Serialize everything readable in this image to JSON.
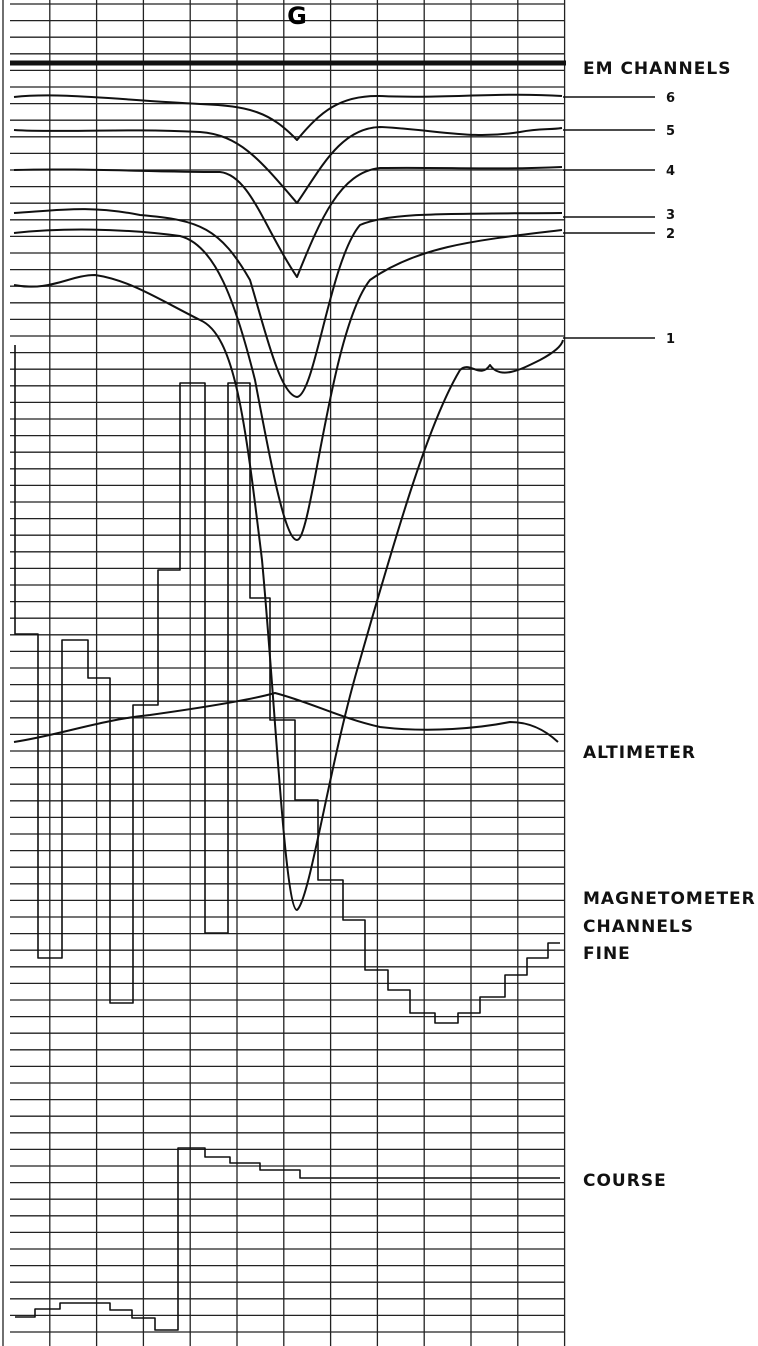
{
  "header": {
    "marker": "G"
  },
  "labels": {
    "em_channels": "EM CHANNELS",
    "channels": [
      "6",
      "5",
      "4",
      "3",
      "2",
      "1"
    ],
    "altimeter": "ALTIMETER",
    "magnetometer": [
      "MAGNETOMETER",
      "CHANNELS",
      "FINE"
    ],
    "course": "COURSE"
  }
}
